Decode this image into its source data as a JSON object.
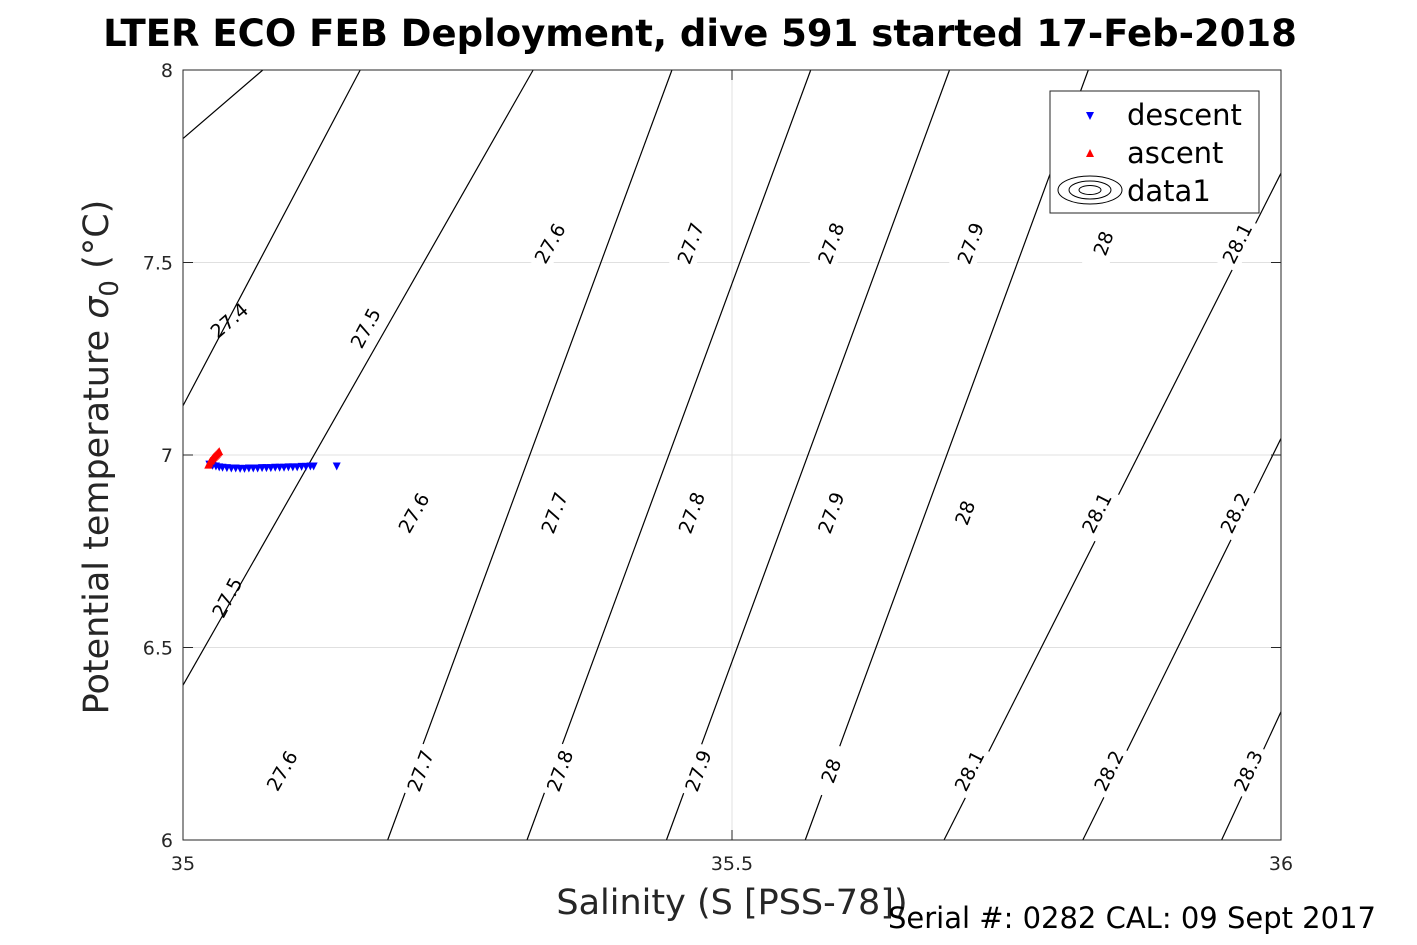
{
  "chart_data": {
    "type": "scatter",
    "title": "LTER ECO FEB Deployment, dive 591 started 17-Feb-2018",
    "xlabel": "Salinity (S [PSS-78])",
    "ylabel_main": "Potential temperature ",
    "ylabel_symbol": "σ",
    "ylabel_subscript": "0",
    "ylabel_unit": " (°C)",
    "xlim": [
      35,
      36
    ],
    "ylim": [
      6,
      8
    ],
    "xticks": [
      35,
      35.5,
      36
    ],
    "yticks": [
      6,
      6.5,
      7,
      7.5,
      8
    ],
    "xtick_labels": [
      "35",
      "35.5",
      "36"
    ],
    "ytick_labels": [
      "6",
      "6.5",
      "7",
      "7.5",
      "8"
    ],
    "grid": true,
    "legend_position": "top-right",
    "series": [
      {
        "name": "descent",
        "marker": "triangle-down",
        "color": "#0000ff",
        "x": [
          35.024,
          35.027,
          35.03,
          35.033,
          35.036,
          35.04,
          35.044,
          35.048,
          35.052,
          35.056,
          35.06,
          35.064,
          35.068,
          35.072,
          35.076,
          35.08,
          35.084,
          35.088,
          35.092,
          35.096,
          35.1,
          35.104,
          35.108,
          35.112,
          35.116,
          35.119,
          35.14
        ],
        "y": [
          6.975,
          6.972,
          6.97,
          6.968,
          6.967,
          6.966,
          6.965,
          6.965,
          6.964,
          6.964,
          6.965,
          6.965,
          6.965,
          6.966,
          6.966,
          6.966,
          6.967,
          6.967,
          6.967,
          6.968,
          6.968,
          6.968,
          6.969,
          6.969,
          6.97,
          6.97,
          6.97
        ]
      },
      {
        "name": "ascent",
        "marker": "triangle-up",
        "color": "#ff0000",
        "x": [
          35.023,
          35.024,
          35.025,
          35.026,
          35.027,
          35.028,
          35.029,
          35.03,
          35.031,
          35.032,
          35.033
        ],
        "y": [
          6.975,
          6.98,
          6.985,
          6.988,
          6.992,
          6.995,
          6.998,
          7.001,
          7.004,
          7.007,
          7.01
        ]
      },
      {
        "name": "data1",
        "type": "contour",
        "color": "#000000",
        "levels": [
          27.4,
          27.5,
          27.6,
          27.7,
          27.8,
          27.9,
          28.0,
          28.1,
          28.2,
          28.3
        ],
        "lines": [
          {
            "level": 27.4,
            "points": [
              [
                35.0,
                7.822
              ],
              [
                35.0727,
                8.0
              ]
            ],
            "labels": [
              [
                35.042,
                7.35
              ]
            ]
          },
          {
            "level": 27.5,
            "points": [
              [
                35.0,
                7.128
              ],
              [
                35.1614,
                8.0
              ]
            ],
            "labels": [
              [
                35.166,
                7.33
              ],
              [
                35.04,
                6.63
              ]
            ]
          },
          {
            "level": 27.6,
            "points": [
              [
                35.0,
                6.402
              ],
              [
                35.3189,
                8.0
              ]
            ],
            "labels": [
              [
                35.334,
                7.55
              ],
              [
                35.21,
                6.85
              ],
              [
                35.09,
                6.18
              ]
            ]
          },
          {
            "level": 27.7,
            "points": [
              [
                35.1864,
                6.0
              ],
              [
                35.4453,
                8.0
              ]
            ],
            "labels": [
              [
                35.462,
                7.55
              ],
              [
                35.338,
                6.85
              ],
              [
                35.216,
                6.18
              ]
            ]
          },
          {
            "level": 27.8,
            "points": [
              [
                35.3133,
                6.0
              ],
              [
                35.5717,
                8.0
              ]
            ],
            "labels": [
              [
                35.59,
                7.55
              ],
              [
                35.463,
                6.85
              ],
              [
                35.343,
                6.18
              ]
            ]
          },
          {
            "level": 27.9,
            "points": [
              [
                35.4403,
                6.0
              ],
              [
                35.6981,
                8.0
              ]
            ],
            "labels": [
              [
                35.717,
                7.55
              ],
              [
                35.59,
                6.85
              ],
              [
                35.469,
                6.18
              ]
            ]
          },
          {
            "level": 28.0,
            "points": [
              [
                35.5667,
                6.0
              ],
              [
                35.8245,
                8.0
              ]
            ],
            "labels": [
              [
                35.838,
                7.55
              ],
              [
                35.712,
                6.85
              ],
              [
                35.59,
                6.18
              ]
            ]
          },
          {
            "level": 28.1,
            "points": [
              [
                35.6931,
                6.0
              ],
              [
                36.0,
                7.732
              ]
            ],
            "labels": [
              [
                35.96,
                7.55
              ],
              [
                35.832,
                6.85
              ],
              [
                35.716,
                6.18
              ]
            ]
          },
          {
            "level": 28.2,
            "points": [
              [
                35.8195,
                6.0
              ],
              [
                36.0,
                7.043
              ]
            ],
            "labels": [
              [
                35.958,
                6.85
              ],
              [
                35.843,
                6.18
              ]
            ]
          },
          {
            "level": 28.3,
            "points": [
              [
                35.9459,
                6.0
              ],
              [
                36.0,
                6.333
              ]
            ],
            "labels": [
              [
                35.97,
                6.18
              ]
            ]
          }
        ]
      }
    ],
    "legend": [
      "descent",
      "ascent",
      "data1"
    ]
  },
  "footer": {
    "text": "Serial #: 0282  CAL: 09 Sept 2017"
  }
}
